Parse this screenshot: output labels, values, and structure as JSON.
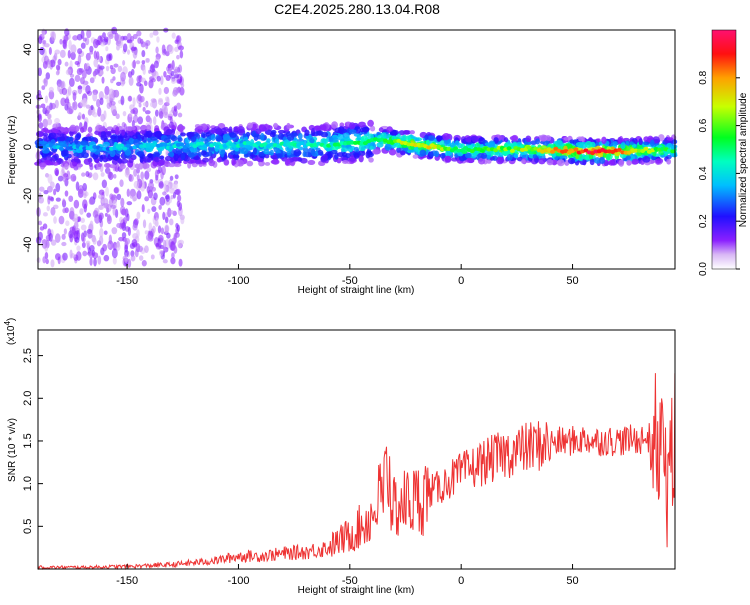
{
  "title": "C2E4.2025.280.13.04.R08",
  "chart_data": [
    {
      "type": "heatmap",
      "description_kind": "spectrogram",
      "xlabel": "Height of straight line (km)",
      "ylabel": "Frequency (Hz)",
      "xlim": [
        -190,
        96
      ],
      "ylim": [
        -50,
        48
      ],
      "xticks": [
        -150,
        -100,
        -50,
        0,
        50
      ],
      "yticks": [
        -40,
        -20,
        0,
        20,
        40
      ],
      "colorbar": {
        "label": "Normalized spectral amplitude",
        "range": [
          0,
          1
        ],
        "ticks": [
          "0.0",
          "0.2",
          "0.4",
          "0.6",
          "0.8"
        ],
        "tick_values": [
          0,
          0.2,
          0.4,
          0.6,
          0.8
        ]
      },
      "ridge": [
        {
          "x": -190,
          "f": 0,
          "amp": 0.3
        },
        {
          "x": -150,
          "f": 0,
          "amp": 0.35
        },
        {
          "x": -100,
          "f": 1,
          "amp": 0.4
        },
        {
          "x": -60,
          "f": 1,
          "amp": 0.45
        },
        {
          "x": -35,
          "f": 3,
          "amp": 0.5
        },
        {
          "x": -20,
          "f": 1,
          "amp": 0.75
        },
        {
          "x": 0,
          "f": -1,
          "amp": 0.55
        },
        {
          "x": 30,
          "f": -1,
          "amp": 0.65
        },
        {
          "x": 60,
          "f": -2,
          "amp": 0.95
        },
        {
          "x": 96,
          "f": -1,
          "amp": 0.5
        }
      ]
    },
    {
      "type": "line",
      "xlabel": "Height of straight line (km)",
      "ylabel": "SNR (10 * v/v)",
      "y_scale_label": "(x10",
      "y_scale_exp": "4",
      "y_scale_close": ")",
      "xlim": [
        -190,
        96
      ],
      "ylim": [
        0,
        2.8
      ],
      "xticks": [
        -150,
        -100,
        -50,
        0,
        50
      ],
      "yticks": [
        0.5,
        1.0,
        1.5,
        2.0,
        2.5
      ],
      "ytick_labels": [
        "0.5",
        "1.0",
        "1.5",
        "2.0",
        "2.5"
      ],
      "color": "#ee3333",
      "series": [
        {
          "name": "SNR",
          "x": [
            -190,
            -170,
            -150,
            -130,
            -110,
            -100,
            -90,
            -80,
            -70,
            -60,
            -50,
            -45,
            -40,
            -35,
            -33,
            -30,
            -25,
            -20,
            -15,
            -10,
            -5,
            0,
            10,
            20,
            30,
            40,
            50,
            55,
            60,
            70,
            80,
            88,
            92,
            96
          ],
          "y": [
            0.02,
            0.02,
            0.03,
            0.05,
            0.1,
            0.15,
            0.15,
            0.18,
            0.2,
            0.25,
            0.4,
            0.5,
            0.62,
            0.95,
            1.1,
            0.72,
            0.78,
            0.8,
            0.9,
            0.95,
            1.05,
            1.12,
            1.25,
            1.35,
            1.42,
            1.48,
            1.5,
            1.52,
            1.5,
            1.5,
            1.52,
            1.55,
            1.2,
            1.45
          ]
        }
      ]
    }
  ]
}
